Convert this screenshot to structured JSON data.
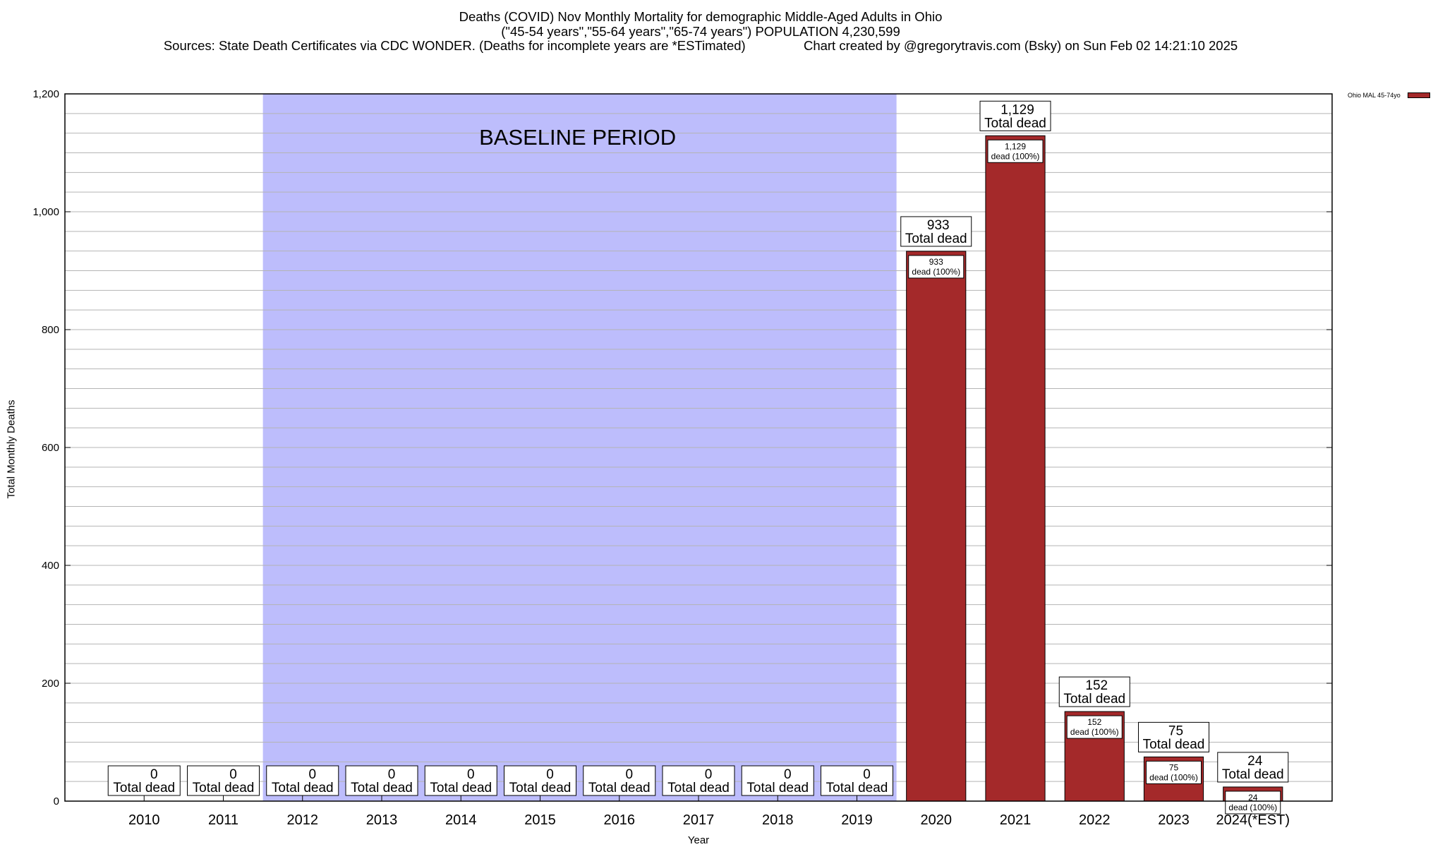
{
  "header": {
    "title_line1": "Deaths (COVID) Nov Monthly Mortality for demographic Middle-Aged Adults in Ohio",
    "title_line2": "(\"45-54 years\",\"55-64 years\",\"65-74 years\") POPULATION 4,230,599",
    "title_line3": "Sources: State Death Certificates via CDC WONDER. (Deaths for incomplete years are *ESTimated)                Chart created by @gregorytravis.com (Bsky) on Sun Feb 02 14:21:10 2025"
  },
  "legend": {
    "label": "Ohio MAL 45-74yo"
  },
  "colors": {
    "bar": "#a4292a",
    "baseline": "#bdbdfc",
    "grid": "#b4b4b4"
  },
  "chart_data": {
    "type": "bar",
    "xlabel": "Year",
    "ylabel": "Total Monthly Deaths",
    "ylim": [
      0,
      1200
    ],
    "yticks": [
      0,
      200,
      400,
      600,
      800,
      1000,
      1200
    ],
    "ytick_labels": [
      "0",
      "200",
      "400",
      "600",
      "800",
      "1,000",
      "1,200"
    ],
    "grid": true,
    "legend_position": "top-right",
    "categories": [
      "2010",
      "2011",
      "2012",
      "2013",
      "2014",
      "2015",
      "2016",
      "2017",
      "2018",
      "2019",
      "2020",
      "2021",
      "2022",
      "2023",
      "2024(*EST)"
    ],
    "series": [
      {
        "name": "Ohio MAL 45-74yo",
        "values": [
          0,
          0,
          0,
          0,
          0,
          0,
          0,
          0,
          0,
          0,
          933,
          1129,
          152,
          75,
          24
        ]
      }
    ],
    "value_labels": [
      "0",
      "0",
      "0",
      "0",
      "0",
      "0",
      "0",
      "0",
      "0",
      "0",
      "933",
      "1,129",
      "152",
      "75",
      "24"
    ],
    "total_label_suffix": "Total dead",
    "inner_label_suffix": "dead (100%)",
    "baseline_period": {
      "label": "BASELINE PERIOD",
      "from": "2012",
      "to": "2019"
    }
  }
}
